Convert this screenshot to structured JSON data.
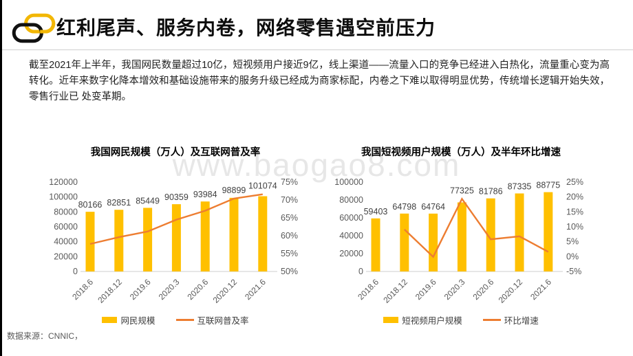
{
  "header": {
    "title": "红利尾声、服务内卷，网络零售遇空前压力",
    "icon": "chain-links-icon"
  },
  "body": {
    "paragraph": "截至2021年上半年，我国网民数量超过10亿，短视频用户接近9亿，线上渠道——流量入口的竞争已经进入白热化，流量重心变为高转化。近年来数字化降本增效和基础设施带来的服务升级已经成为商家标配，内卷之下难以取得明显优势，传统增长逻辑开始失效，零售行业已 处变革期。"
  },
  "watermark": {
    "text": "www.baogao8.com"
  },
  "footer": {
    "source": "数据来源：CNNIC，"
  },
  "colors": {
    "bar": "#FFC000",
    "line": "#ED7D31",
    "axis_text": "#595959",
    "data_label": "#404040",
    "axis_line": "#d6d6d6",
    "icon_yellow": "#F2B705",
    "icon_black": "#111111",
    "watermark": "#e7e7e7"
  },
  "chart_data": [
    {
      "type": "bar+line",
      "title": "我国网民规模（万人）及互联网普及率",
      "categories": [
        "2018.6",
        "2018.12",
        "2019.6",
        "2020.3",
        "2020.6",
        "2020.12",
        "2021.6"
      ],
      "series": [
        {
          "name": "网民规模",
          "type": "bar",
          "axis": "left",
          "values": [
            80166,
            82851,
            85449,
            90359,
            93984,
            98899,
            101074
          ]
        },
        {
          "name": "互联网普及率",
          "type": "line",
          "axis": "right",
          "values": [
            57.7,
            59.6,
            61.2,
            64.5,
            67.0,
            70.4,
            71.6
          ]
        }
      ],
      "left_axis": {
        "min": 0,
        "max": 120000,
        "step": 20000,
        "labels": [
          "120000",
          "100000",
          "80000",
          "60000",
          "40000",
          "20000",
          "0"
        ]
      },
      "right_axis": {
        "min": 50,
        "max": 75,
        "step": 5,
        "labels": [
          "75%",
          "70%",
          "65%",
          "60%",
          "55%",
          "50%"
        ]
      },
      "data_labels_on": "bar",
      "legend_position": "bottom",
      "grid": false
    },
    {
      "type": "bar+line",
      "title": "我国短视频用户规模（万人）及半年环比增速",
      "categories": [
        "2018.6",
        "2018.12",
        "2019.6",
        "2020.3",
        "2020.6",
        "2020.12",
        "2021.6"
      ],
      "series": [
        {
          "name": "短视频用户规模",
          "type": "bar",
          "axis": "left",
          "values": [
            59403,
            64798,
            64764,
            77325,
            81786,
            87335,
            88775
          ]
        },
        {
          "name": "环比增速",
          "type": "line",
          "axis": "right",
          "values": [
            null,
            9.1,
            -0.1,
            19.4,
            5.8,
            6.8,
            1.6
          ]
        }
      ],
      "left_axis": {
        "min": 0,
        "max": 100000,
        "step": 20000,
        "labels": [
          "100000",
          "80000",
          "60000",
          "40000",
          "20000",
          "0"
        ]
      },
      "right_axis": {
        "min": -5,
        "max": 25,
        "step": 5,
        "labels": [
          "25%",
          "20%",
          "15%",
          "10%",
          "5%",
          "0%",
          "-5%"
        ]
      },
      "data_labels_on": "bar",
      "legend_position": "bottom",
      "grid": false
    }
  ]
}
